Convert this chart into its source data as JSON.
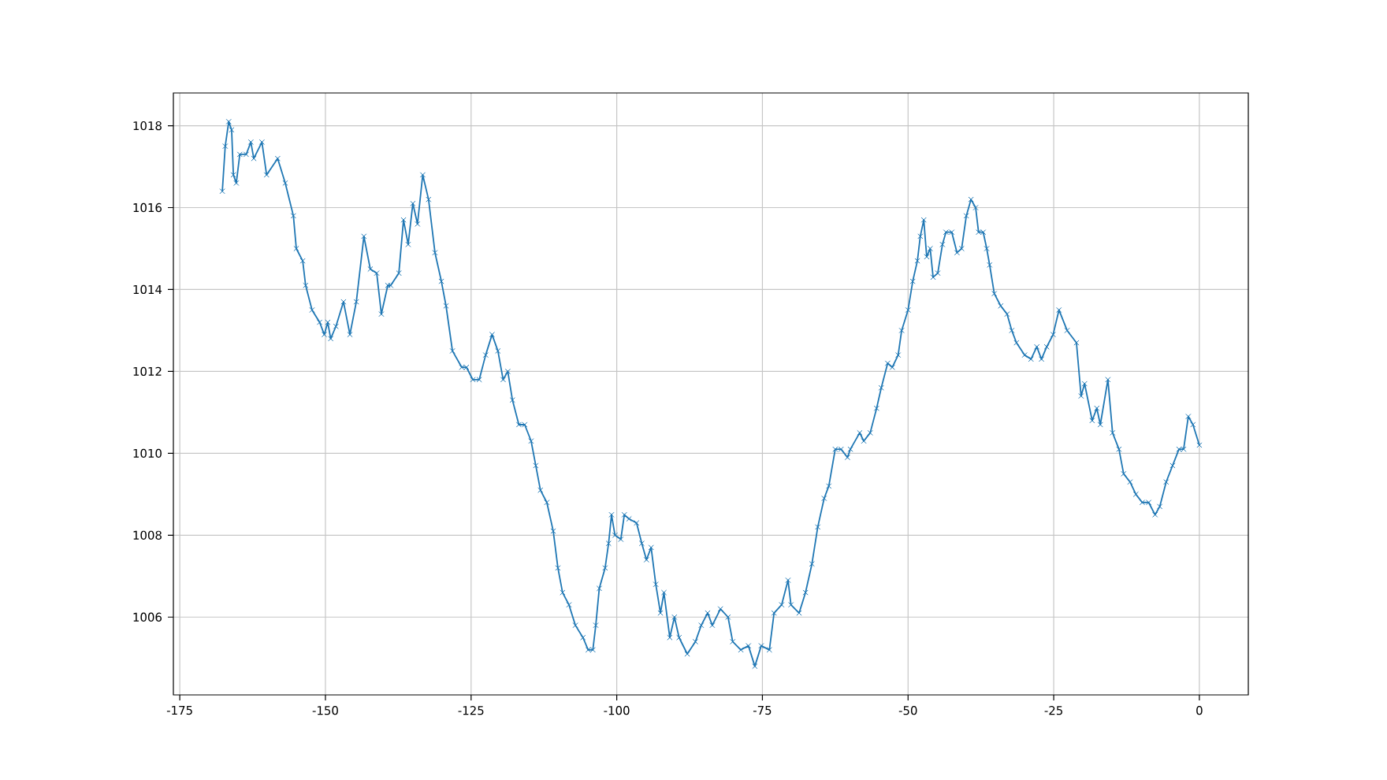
{
  "chart_data": {
    "type": "line",
    "xlim": [
      -176.1,
      8.4
    ],
    "ylim": [
      1004.1,
      1018.8
    ],
    "xticks": [
      -175,
      -150,
      -125,
      -100,
      -75,
      -50,
      -25,
      0
    ],
    "yticks": [
      1006,
      1008,
      1010,
      1012,
      1014,
      1016,
      1018
    ],
    "grid": true,
    "marker": "cross",
    "line_style": "solid",
    "series": [
      {
        "color": "#1f77b4",
        "x": [
          -167.7,
          -167.2,
          -166.6,
          -166.1,
          -165.8,
          -165.3,
          -164.7,
          -163.6,
          -162.8,
          -162.3,
          -160.9,
          -160.1,
          -158.2,
          -156.9,
          -155.5,
          -155.0,
          -153.9,
          -153.4,
          -152.3,
          -151.0,
          -150.2,
          -149.6,
          -149.1,
          -148.2,
          -146.9,
          -145.8,
          -144.7,
          -143.4,
          -142.3,
          -141.2,
          -140.4,
          -139.3,
          -138.8,
          -137.4,
          -136.6,
          -135.8,
          -135.0,
          -134.2,
          -133.3,
          -132.3,
          -131.2,
          -130.1,
          -129.3,
          -128.2,
          -126.6,
          -125.8,
          -124.7,
          -123.6,
          -122.5,
          -121.4,
          -120.4,
          -119.5,
          -118.7,
          -117.9,
          -116.8,
          -115.8,
          -114.7,
          -113.9,
          -113.1,
          -112.0,
          -110.9,
          -110.1,
          -109.3,
          -108.2,
          -107.1,
          -105.8,
          -104.9,
          -104.1,
          -103.6,
          -103.0,
          -102.0,
          -101.4,
          -100.9,
          -100.3,
          -99.3,
          -98.7,
          -97.9,
          -96.6,
          -95.7,
          -94.9,
          -94.1,
          -93.3,
          -92.5,
          -91.9,
          -90.9,
          -90.1,
          -89.3,
          -87.9,
          -86.5,
          -85.5,
          -84.4,
          -83.6,
          -82.2,
          -80.9,
          -80.1,
          -78.7,
          -77.4,
          -76.3,
          -75.2,
          -73.8,
          -73.0,
          -71.7,
          -70.6,
          -70.1,
          -68.7,
          -67.6,
          -66.5,
          -65.5,
          -64.4,
          -63.6,
          -62.5,
          -61.5,
          -60.4,
          -59.9,
          -58.3,
          -57.6,
          -56.5,
          -55.4,
          -54.6,
          -53.5,
          -52.7,
          -51.7,
          -51.1,
          -50.0,
          -49.2,
          -48.4,
          -47.9,
          -47.3,
          -46.8,
          -46.2,
          -45.7,
          -44.9,
          -44.1,
          -43.5,
          -42.5,
          -41.6,
          -40.8,
          -40.0,
          -39.2,
          -38.4,
          -37.9,
          -37.1,
          -36.5,
          -36.0,
          -35.2,
          -34.1,
          -33.0,
          -32.2,
          -31.4,
          -30.0,
          -28.9,
          -27.9,
          -27.1,
          -26.2,
          -25.1,
          -24.1,
          -22.7,
          -21.1,
          -20.3,
          -19.7,
          -18.4,
          -17.6,
          -17.0,
          -15.7,
          -14.9,
          -13.8,
          -13.0,
          -11.9,
          -10.9,
          -9.8,
          -8.7,
          -7.6,
          -6.8,
          -5.7,
          -4.6,
          -3.5,
          -2.7,
          -1.9,
          -1.1,
          0.0
        ],
        "values": [
          1016.4,
          1017.5,
          1018.1,
          1017.9,
          1016.8,
          1016.6,
          1017.3,
          1017.3,
          1017.6,
          1017.2,
          1017.6,
          1016.8,
          1017.2,
          1016.6,
          1015.8,
          1015.0,
          1014.7,
          1014.1,
          1013.5,
          1013.2,
          1012.9,
          1013.2,
          1012.8,
          1013.1,
          1013.7,
          1012.9,
          1013.7,
          1015.3,
          1014.5,
          1014.4,
          1013.4,
          1014.1,
          1014.1,
          1014.4,
          1015.7,
          1015.1,
          1016.1,
          1015.6,
          1016.8,
          1016.2,
          1014.9,
          1014.2,
          1013.6,
          1012.5,
          1012.1,
          1012.1,
          1011.8,
          1011.8,
          1012.4,
          1012.9,
          1012.5,
          1011.8,
          1012.0,
          1011.3,
          1010.7,
          1010.7,
          1010.3,
          1009.7,
          1009.1,
          1008.8,
          1008.1,
          1007.2,
          1006.6,
          1006.3,
          1005.8,
          1005.5,
          1005.2,
          1005.2,
          1005.8,
          1006.7,
          1007.2,
          1007.8,
          1008.5,
          1008.0,
          1007.9,
          1008.5,
          1008.4,
          1008.3,
          1007.8,
          1007.4,
          1007.7,
          1006.8,
          1006.1,
          1006.6,
          1005.5,
          1006.0,
          1005.5,
          1005.1,
          1005.4,
          1005.8,
          1006.1,
          1005.8,
          1006.2,
          1006.0,
          1005.4,
          1005.2,
          1005.3,
          1004.8,
          1005.3,
          1005.2,
          1006.1,
          1006.3,
          1006.9,
          1006.3,
          1006.1,
          1006.6,
          1007.3,
          1008.2,
          1008.9,
          1009.2,
          1010.1,
          1010.1,
          1009.9,
          1010.1,
          1010.5,
          1010.3,
          1010.5,
          1011.1,
          1011.6,
          1012.2,
          1012.1,
          1012.4,
          1013.0,
          1013.5,
          1014.2,
          1014.7,
          1015.3,
          1015.7,
          1014.8,
          1015.0,
          1014.3,
          1014.4,
          1015.1,
          1015.4,
          1015.4,
          1014.9,
          1015.0,
          1015.8,
          1016.2,
          1016.0,
          1015.4,
          1015.4,
          1015.0,
          1014.6,
          1013.9,
          1013.6,
          1013.4,
          1013.0,
          1012.7,
          1012.4,
          1012.3,
          1012.6,
          1012.3,
          1012.6,
          1012.9,
          1013.5,
          1013.0,
          1012.7,
          1011.4,
          1011.7,
          1010.8,
          1011.1,
          1010.7,
          1011.8,
          1010.5,
          1010.1,
          1009.5,
          1009.3,
          1009.0,
          1008.8,
          1008.8,
          1008.5,
          1008.7,
          1009.3,
          1009.7,
          1010.1,
          1010.1,
          1010.9,
          1010.7,
          1010.2
        ]
      }
    ]
  }
}
